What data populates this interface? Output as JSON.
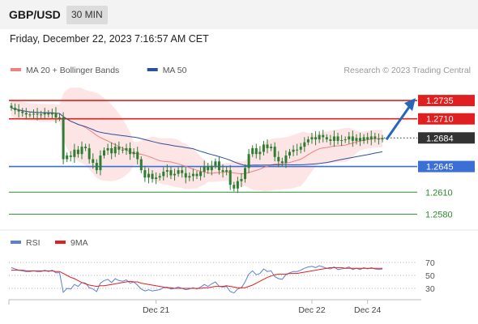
{
  "header": {
    "pair": "GBP/USD",
    "timeframe": "30 MIN"
  },
  "timestamp": "Friday, December 22, 2023 7:16:57 AM CET",
  "copyright": "Research © 2023 Trading Central",
  "colors": {
    "candle": "#2e7d32",
    "resistance": "#e02020",
    "support": "#3b6fd6",
    "target": "#2e8b2e",
    "current": "#333333",
    "bollinger": "#fde1e1",
    "ma20": "#f08080",
    "ma50": "#2e4f9a",
    "rsi": "#5b7fd6",
    "rsi_ma": "#e02020",
    "arrow": "#2a66b8"
  },
  "chart_data": [
    {
      "type": "candlestick",
      "legend": [
        {
          "name": "MA 20 + Bollinger Bands",
          "color": "#f08080"
        },
        {
          "name": "MA 50",
          "color": "#2e4f9a"
        }
      ],
      "ylim": [
        1.2565,
        1.2755
      ],
      "levels": [
        {
          "value": 1.2735,
          "label": "1.2735",
          "kind": "resistance"
        },
        {
          "value": 1.271,
          "label": "1.2710",
          "kind": "resistance"
        },
        {
          "value": 1.2684,
          "label": "1.2684",
          "kind": "current"
        },
        {
          "value": 1.2645,
          "label": "1.2645",
          "kind": "support"
        },
        {
          "value": 1.261,
          "label": "1.2610",
          "kind": "target"
        },
        {
          "value": 1.258,
          "label": "1.2580",
          "kind": "target"
        }
      ],
      "projection": {
        "from": 1.2684,
        "to": 1.2735,
        "direction": "up"
      },
      "close": [
        1.2725,
        1.2722,
        1.272,
        1.2718,
        1.2716,
        1.2716,
        1.2717,
        1.2716,
        1.2716,
        1.2718,
        1.2716,
        1.2718,
        1.2712,
        1.2712,
        1.2655,
        1.266,
        1.2658,
        1.2668,
        1.2662,
        1.2672,
        1.267,
        1.2655,
        1.265,
        1.264,
        1.266,
        1.2667,
        1.267,
        1.2663,
        1.2672,
        1.2668,
        1.2667,
        1.267,
        1.2662,
        1.2665,
        1.2655,
        1.264,
        1.263,
        1.2635,
        1.2628,
        1.263,
        1.2632,
        1.2638,
        1.264,
        1.2633,
        1.2635,
        1.264,
        1.2636,
        1.263,
        1.2632,
        1.2635,
        1.2632,
        1.2638,
        1.2645,
        1.264,
        1.2646,
        1.2652,
        1.264,
        1.2638,
        1.264,
        1.262,
        1.2615,
        1.2625,
        1.2628,
        1.2643,
        1.2662,
        1.267,
        1.2662,
        1.2665,
        1.2675,
        1.267,
        1.2672,
        1.2658,
        1.2652,
        1.265,
        1.266,
        1.2665,
        1.2668,
        1.2668,
        1.2672,
        1.2678,
        1.2682,
        1.2685,
        1.2682,
        1.2688,
        1.2685,
        1.2682,
        1.268,
        1.2686,
        1.268,
        1.2681,
        1.2682,
        1.2686,
        1.268,
        1.2684,
        1.268,
        1.2685,
        1.2682,
        1.2686,
        1.2683,
        1.2682,
        1.2684
      ],
      "x_ticks": [
        {
          "index": 39,
          "label": "Dec 21"
        },
        {
          "index": 81,
          "label": "Dec 22"
        },
        {
          "index": 96,
          "label": "Dec 24"
        }
      ]
    },
    {
      "type": "line",
      "legend": [
        {
          "name": "RSI",
          "color": "#5b7fd6"
        },
        {
          "name": "9MA",
          "color": "#e02020"
        }
      ],
      "ylim": [
        15,
        85
      ],
      "y_ticks": [
        70,
        50,
        30
      ],
      "series": [
        {
          "name": "RSI",
          "values": [
            62,
            60,
            58,
            57,
            56,
            56,
            57,
            56,
            56,
            58,
            56,
            58,
            54,
            54,
            24,
            30,
            29,
            36,
            33,
            39,
            38,
            31,
            29,
            25,
            38,
            42,
            44,
            39,
            45,
            42,
            41,
            43,
            38,
            40,
            35,
            29,
            26,
            28,
            26,
            27,
            28,
            31,
            32,
            29,
            30,
            32,
            30,
            28,
            29,
            31,
            29,
            32,
            36,
            33,
            37,
            40,
            33,
            32,
            33,
            25,
            23,
            29,
            31,
            40,
            52,
            57,
            51,
            53,
            60,
            56,
            57,
            48,
            45,
            44,
            51,
            54,
            56,
            56,
            58,
            61,
            63,
            64,
            62,
            65,
            63,
            61,
            60,
            63,
            59,
            60,
            61,
            63,
            59,
            61,
            59,
            62,
            60,
            62,
            60,
            59,
            60
          ]
        },
        {
          "name": "9MA",
          "values": [
            58,
            58,
            58,
            58,
            57,
            57,
            57,
            57,
            57,
            57,
            57,
            57,
            56,
            56,
            53,
            50,
            47,
            45,
            42,
            39,
            37,
            35,
            34,
            33,
            34,
            34,
            35,
            36,
            37,
            38,
            39,
            40,
            41,
            40,
            40,
            38,
            37,
            36,
            35,
            34,
            33,
            32,
            31,
            31,
            30,
            30,
            30,
            30,
            30,
            30,
            30,
            30,
            31,
            31,
            32,
            33,
            33,
            33,
            34,
            33,
            32,
            31,
            31,
            31,
            33,
            35,
            38,
            41,
            44,
            47,
            49,
            51,
            52,
            52,
            52,
            53,
            53,
            53,
            54,
            55,
            56,
            57,
            58,
            59,
            60,
            61,
            62,
            62,
            62,
            62,
            61,
            61,
            61,
            61,
            61,
            61,
            61,
            61,
            61,
            61,
            61
          ]
        }
      ]
    }
  ]
}
